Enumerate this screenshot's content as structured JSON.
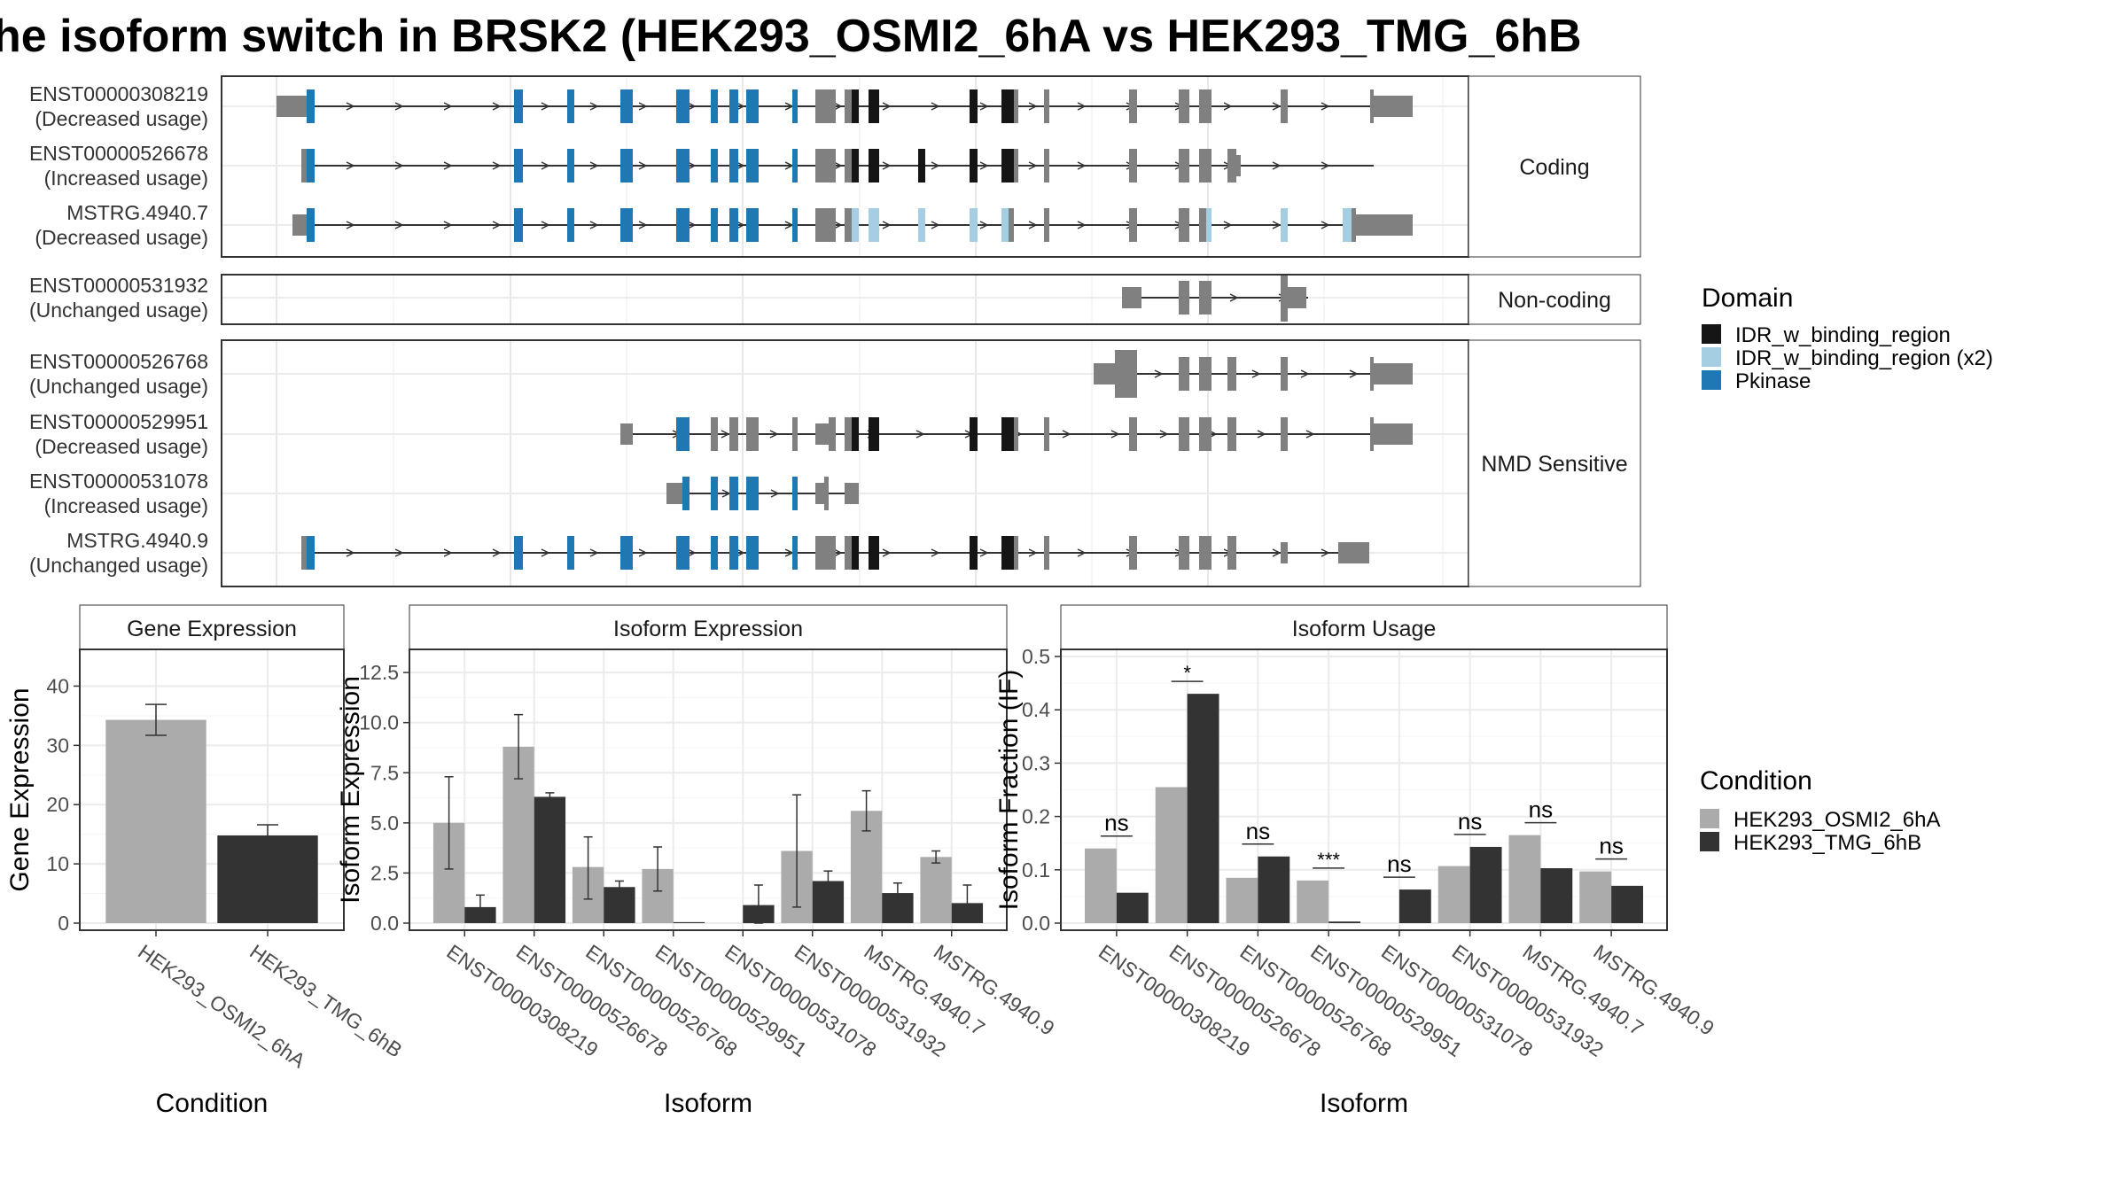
{
  "title": "he isoform switch in BRSK2 (HEK293_OSMI2_6hA vs HEK293_TMG_6hB",
  "colors": {
    "cond_a": "#ababab",
    "cond_b": "#333333",
    "exon": "#808080",
    "idr": "#151515",
    "idr_x2": "#a6cee3",
    "pkinase": "#1f78b4"
  },
  "structure": {
    "groups": [
      {
        "label": "Coding",
        "isoforms": [
          {
            "id": "ENST00000308219",
            "usage": "(Decreased usage)"
          },
          {
            "id": "ENST00000526678",
            "usage": "(Increased usage)"
          },
          {
            "id": "MSTRG.4940.7",
            "usage": "(Decreased usage)"
          }
        ]
      },
      {
        "label": "Non-coding",
        "isoforms": [
          {
            "id": "ENST00000531932",
            "usage": "(Unchanged usage)"
          }
        ]
      },
      {
        "label": "NMD Sensitive",
        "isoforms": [
          {
            "id": "ENST00000526768",
            "usage": "(Unchanged usage)"
          },
          {
            "id": "ENST00000529951",
            "usage": "(Decreased usage)"
          },
          {
            "id": "ENST00000531078",
            "usage": "(Increased usage)"
          },
          {
            "id": "MSTRG.4940.9",
            "usage": "(Unchanged usage)"
          }
        ]
      }
    ]
  },
  "legend_domain": {
    "title": "Domain",
    "items": [
      {
        "label": "IDR_w_binding_region",
        "color": "#151515"
      },
      {
        "label": "IDR_w_binding_region (x2)",
        "color": "#a6cee3"
      },
      {
        "label": "Pkinase",
        "color": "#1f78b4"
      }
    ]
  },
  "legend_condition": {
    "title": "Condition",
    "items": [
      {
        "label": "HEK293_OSMI2_6hA",
        "color": "#ababab"
      },
      {
        "label": "HEK293_TMG_6hB",
        "color": "#333333"
      }
    ]
  },
  "chart_data": [
    {
      "type": "bar",
      "title": "Gene Expression",
      "xlabel": "Condition",
      "ylabel": "Gene Expression",
      "ylim": [
        0,
        45
      ],
      "yticks": [
        "0",
        "10",
        "20",
        "30",
        "40"
      ],
      "categories": [
        "HEK293_OSMI2_6hA",
        "HEK293_TMG_6hB"
      ],
      "values": [
        34.3,
        14.8
      ],
      "errors": [
        [
          31.7,
          36.9
        ],
        [
          13.0,
          16.6
        ]
      ]
    },
    {
      "type": "bar",
      "title": "Isoform Expression",
      "xlabel": "Isoform",
      "ylabel": "Isoform Expression",
      "ylim": [
        0,
        13.3
      ],
      "yticks": [
        "0.0",
        "2.5",
        "5.0",
        "7.5",
        "10.0",
        "12.5"
      ],
      "categories": [
        "ENST00000308219",
        "ENST00000526678",
        "ENST00000526768",
        "ENST00000529951",
        "ENST00000531078",
        "ENST00000531932",
        "MSTRG.4940.7",
        "MSTRG.4940.9"
      ],
      "series": [
        {
          "name": "HEK293_OSMI2_6hA",
          "values": [
            5.0,
            8.8,
            2.8,
            2.7,
            0.0,
            3.6,
            5.6,
            3.3
          ],
          "errors": [
            [
              2.7,
              7.3
            ],
            [
              7.2,
              10.4
            ],
            [
              1.2,
              4.3
            ],
            [
              1.6,
              3.8
            ],
            null,
            [
              0.8,
              6.4
            ],
            [
              4.6,
              6.6
            ],
            [
              3.0,
              3.6
            ]
          ]
        },
        {
          "name": "HEK293_TMG_6hB",
          "values": [
            0.8,
            6.3,
            1.8,
            0.05,
            0.9,
            2.1,
            1.5,
            1.0
          ],
          "errors": [
            [
              0.4,
              1.4
            ],
            [
              6.1,
              6.5
            ],
            [
              1.6,
              2.1
            ],
            null,
            [
              0.0,
              1.9
            ],
            [
              1.7,
              2.6
            ],
            [
              1.0,
              2.0
            ],
            [
              0.2,
              1.9
            ]
          ]
        }
      ]
    },
    {
      "type": "bar",
      "title": "Isoform Usage",
      "xlabel": "Isoform",
      "ylabel": "Isoform Fraction (IF)",
      "ylim": [
        0,
        0.5
      ],
      "yticks": [
        "0.0",
        "0.1",
        "0.2",
        "0.3",
        "0.4",
        "0.5"
      ],
      "categories": [
        "ENST00000308219",
        "ENST00000526678",
        "ENST00000526768",
        "ENST00000529951",
        "ENST00000531078",
        "ENST00000531932",
        "MSTRG.4940.7",
        "MSTRG.4940.9"
      ],
      "series": [
        {
          "name": "HEK293_OSMI2_6hA",
          "values": [
            0.14,
            0.255,
            0.085,
            0.08,
            0.0,
            0.107,
            0.165,
            0.097
          ]
        },
        {
          "name": "HEK293_TMG_6hB",
          "values": [
            0.057,
            0.43,
            0.125,
            0.003,
            0.063,
            0.143,
            0.103,
            0.07
          ]
        }
      ],
      "significance": [
        "ns",
        "*",
        "ns",
        "***",
        "ns",
        "ns",
        "ns",
        "ns"
      ]
    }
  ]
}
